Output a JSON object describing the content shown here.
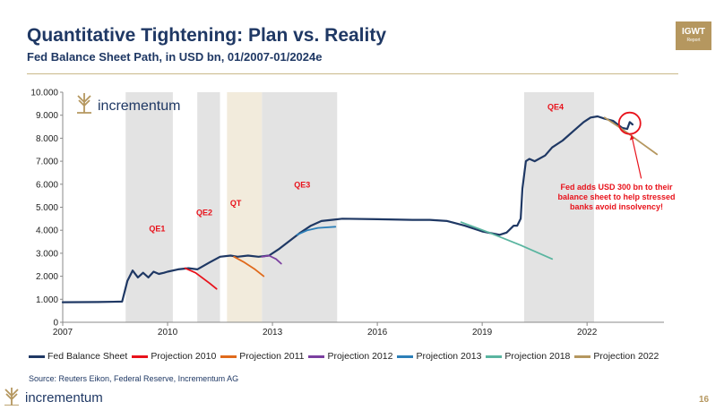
{
  "header": {
    "title": "Quantitative Tightening: Plan vs. Reality",
    "subtitle": "Fed Balance Sheet Path, in USD bn, 01/2007-01/2024e",
    "badge_main": "IGWT",
    "badge_sub": "Report"
  },
  "brand": {
    "name": "incrementum"
  },
  "footer": {
    "source": "Source: Reuters Eikon, Federal Reserve, Incrementum AG",
    "page_number": "16"
  },
  "colors": {
    "title": "#1f3864",
    "accent_gold": "#b5975f",
    "annotation_red": "#e8121b",
    "shade": "#e3e3e3",
    "shade_qt": "#f2ebdc"
  },
  "chart_data": {
    "type": "line",
    "title": "Fed Balance Sheet Path, in USD bn, 01/2007-01/2024e",
    "xlabel": "",
    "ylabel": "USD bn",
    "xlim": [
      2007,
      2024.2
    ],
    "ylim": [
      0,
      10000
    ],
    "x_ticks": [
      {
        "value": 2007,
        "label": "2007"
      },
      {
        "value": 2010,
        "label": "2010"
      },
      {
        "value": 2013,
        "label": "2013"
      },
      {
        "value": 2016,
        "label": "2016"
      },
      {
        "value": 2019,
        "label": "2019"
      },
      {
        "value": 2022,
        "label": "2022"
      }
    ],
    "y_ticks": [
      {
        "value": 0,
        "label": "0"
      },
      {
        "value": 1000,
        "label": "1.000"
      },
      {
        "value": 2000,
        "label": "2.000"
      },
      {
        "value": 3000,
        "label": "3.000"
      },
      {
        "value": 4000,
        "label": "4.000"
      },
      {
        "value": 5000,
        "label": "5.000"
      },
      {
        "value": 6000,
        "label": "6.000"
      },
      {
        "value": 7000,
        "label": "7.000"
      },
      {
        "value": 8000,
        "label": "8.000"
      },
      {
        "value": 9000,
        "label": "9.000"
      },
      {
        "value": 10000,
        "label": "10.000"
      }
    ],
    "regions": [
      {
        "label": "QE1",
        "start": 2008.8,
        "end": 2010.15,
        "label_value": 3950,
        "label_x": 2009.7,
        "kind": "qe"
      },
      {
        "label": "QE2",
        "start": 2010.85,
        "end": 2011.5,
        "label_value": 4650,
        "label_x": 2011.05,
        "kind": "qe"
      },
      {
        "label": "QT",
        "start": 2011.7,
        "end": 2012.7,
        "label_value": 5050,
        "label_x": 2011.95,
        "kind": "qt"
      },
      {
        "label": "QE3",
        "start": 2012.7,
        "end": 2014.85,
        "label_value": 5850,
        "label_x": 2013.85,
        "kind": "qe"
      },
      {
        "label": "QE4",
        "start": 2020.2,
        "end": 2022.2,
        "label_value": 9250,
        "label_x": 2021.1,
        "kind": "qe"
      }
    ],
    "series": [
      {
        "name": "Fed Balance Sheet",
        "color": "#1f3864",
        "x": [
          2007.0,
          2008.0,
          2008.7,
          2008.85,
          2009.0,
          2009.15,
          2009.3,
          2009.45,
          2009.6,
          2009.75,
          2009.9,
          2010.0,
          2010.3,
          2010.6,
          2010.85,
          2011.2,
          2011.5,
          2011.8,
          2012.0,
          2012.3,
          2012.6,
          2012.9,
          2013.2,
          2013.5,
          2013.8,
          2014.1,
          2014.4,
          2014.7,
          2015.0,
          2016.0,
          2017.0,
          2017.5,
          2018.0,
          2018.5,
          2019.0,
          2019.5,
          2019.7,
          2019.9,
          2020.0,
          2020.1,
          2020.15,
          2020.25,
          2020.35,
          2020.5,
          2020.8,
          2021.0,
          2021.3,
          2021.6,
          2021.9,
          2022.1,
          2022.3,
          2022.5,
          2022.75,
          2023.0,
          2023.15,
          2023.22,
          2023.3
        ],
        "values": [
          870,
          880,
          900,
          1800,
          2250,
          1950,
          2150,
          1950,
          2200,
          2100,
          2150,
          2200,
          2300,
          2350,
          2300,
          2600,
          2850,
          2900,
          2850,
          2900,
          2850,
          2900,
          3200,
          3550,
          3900,
          4200,
          4400,
          4450,
          4500,
          4480,
          4450,
          4450,
          4400,
          4200,
          3950,
          3800,
          3900,
          4200,
          4200,
          4500,
          5800,
          7000,
          7100,
          7000,
          7250,
          7600,
          7900,
          8300,
          8700,
          8900,
          8950,
          8850,
          8750,
          8450,
          8400,
          8700,
          8600
        ]
      },
      {
        "name": "Projection 2010",
        "color": "#e8121b",
        "x": [
          2010.5,
          2010.8,
          2011.2,
          2011.4
        ],
        "values": [
          2350,
          2150,
          1700,
          1450
        ]
      },
      {
        "name": "Projection 2011",
        "color": "#e06a1c",
        "x": [
          2011.9,
          2012.2,
          2012.5,
          2012.75
        ],
        "values": [
          2850,
          2600,
          2300,
          2000
        ]
      },
      {
        "name": "Projection 2012",
        "color": "#7b3fa0",
        "x": [
          2012.7,
          2012.9,
          2013.1,
          2013.25
        ],
        "values": [
          2850,
          2900,
          2750,
          2550
        ]
      },
      {
        "name": "Projection 2013",
        "color": "#2c7fb8",
        "x": [
          2013.7,
          2014.0,
          2014.3,
          2014.8
        ],
        "values": [
          3800,
          4000,
          4100,
          4150
        ]
      },
      {
        "name": "Projection 2018",
        "color": "#5ab5a0",
        "x": [
          2018.4,
          2019.2,
          2020.1,
          2021.0
        ],
        "values": [
          4350,
          3900,
          3350,
          2750
        ]
      },
      {
        "name": "Projection 2022",
        "color": "#b5975f",
        "x": [
          2022.5,
          2023.0,
          2023.5,
          2024.0
        ],
        "values": [
          8900,
          8400,
          7850,
          7300
        ]
      }
    ],
    "annotation": {
      "text": [
        "Fed adds USD 300 bn to their",
        "balance sheet to help stressed",
        "banks avoid insolvency!"
      ],
      "circle_x": 2023.22,
      "circle_value": 8650,
      "arrow_from_x": 2023.55,
      "arrow_from_value": 6250
    }
  }
}
